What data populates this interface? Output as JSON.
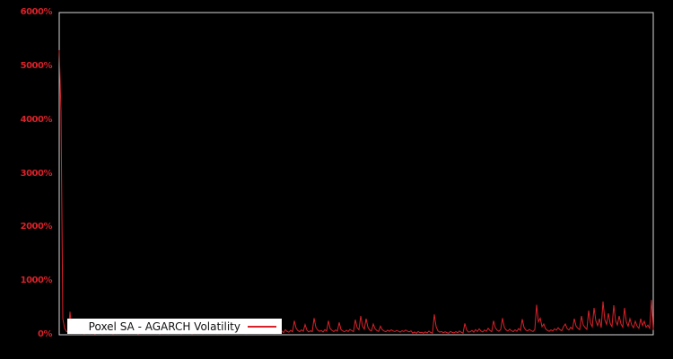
{
  "accent_color": "#d8222a",
  "spine_color": "#d9d9d9",
  "background_color": "#000000",
  "legend": {
    "label": "Poxel SA - AGARCH Volatility"
  },
  "chart_data": {
    "type": "line",
    "title": "",
    "xlabel": "",
    "ylabel": "",
    "ylim": [
      0,
      6000
    ],
    "yticks": [
      "6000%",
      "5000%",
      "4000%",
      "3000%",
      "2000%",
      "1000%",
      "0%"
    ],
    "x_axis_labels": "none",
    "grid": false,
    "legend_position": "bottom-left-inside",
    "series": [
      {
        "name": "Poxel SA - AGARCH Volatility",
        "color": "#d8222a",
        "unit": "percent",
        "values": [
          5300,
          4150,
          300,
          120,
          60,
          60,
          430,
          90,
          40,
          70,
          35,
          55,
          25,
          40,
          18,
          55,
          30,
          22,
          48,
          35,
          15,
          62,
          28,
          42,
          20,
          38,
          52,
          26,
          33,
          45,
          19,
          58,
          24,
          36,
          118,
          44,
          27,
          51,
          33,
          21,
          47,
          29,
          63,
          35,
          17,
          54,
          40,
          25,
          98,
          31,
          46,
          22,
          57,
          34,
          26,
          49,
          18,
          64,
          38,
          29,
          52,
          23,
          41,
          105,
          33,
          27,
          55,
          36,
          20,
          48,
          30,
          60,
          25,
          43,
          19,
          51,
          34,
          88,
          28,
          46,
          22,
          58,
          37,
          26,
          49,
          31,
          128,
          40,
          24,
          53,
          35,
          21,
          45,
          29,
          61,
          33,
          26,
          50,
          38,
          110,
          27,
          44,
          32,
          56,
          23,
          47,
          30,
          65,
          36,
          28,
          52,
          34,
          22,
          48,
          95,
          39,
          27,
          57,
          31,
          43,
          24,
          50,
          36,
          45,
          70,
          38,
          95,
          60,
          48,
          82,
          55,
          260,
          120,
          75,
          58,
          92,
          66,
          190,
          85,
          52,
          74,
          60,
          310,
          140,
          88,
          64,
          78,
          52,
          96,
          70,
          260,
          110,
          82,
          58,
          90,
          68,
          230,
          95,
          72,
          55,
          84,
          62,
          100,
          76,
          58,
          280,
          130,
          92,
          350,
          160,
          105,
          300,
          140,
          88,
          70,
          200,
          110,
          78,
          62,
          160,
          95,
          70,
          55,
          85,
          64,
          92,
          72,
          58,
          80,
          66,
          50,
          76,
          60,
          88,
          68,
          54,
          72,
          30,
          52,
          26,
          60,
          38,
          45,
          28,
          55,
          34,
          68,
          42,
          30,
          380,
          150,
          72,
          48,
          60,
          36,
          55,
          40,
          28,
          62,
          44,
          33,
          58,
          36,
          70,
          46,
          30,
          210,
          90,
          50,
          55,
          80,
          48,
          95,
          62,
          110,
          70,
          52,
          88,
          64,
          120,
          78,
          56,
          260,
          130,
          85,
          66,
          98,
          310,
          140,
          90,
          68,
          105,
          74,
          58,
          92,
          66,
          115,
          80,
          290,
          135,
          88,
          70,
          100,
          76,
          60,
          95,
          560,
          240,
          310,
          150,
          200,
          110,
          82,
          64,
          90,
          70,
          110,
          85,
          130,
          95,
          75,
          150,
          200,
          115,
          90,
          140,
          105,
          300,
          160,
          120,
          95,
          350,
          180,
          135,
          100,
          450,
          220,
          150,
          500,
          260,
          170,
          300,
          130,
          620,
          280,
          190,
          400,
          210,
          150,
          550,
          260,
          180,
          350,
          200,
          140,
          500,
          240,
          160,
          300,
          180,
          130,
          250,
          160,
          120,
          300,
          170,
          250,
          140,
          180,
          120,
          650,
          90
        ]
      }
    ]
  }
}
